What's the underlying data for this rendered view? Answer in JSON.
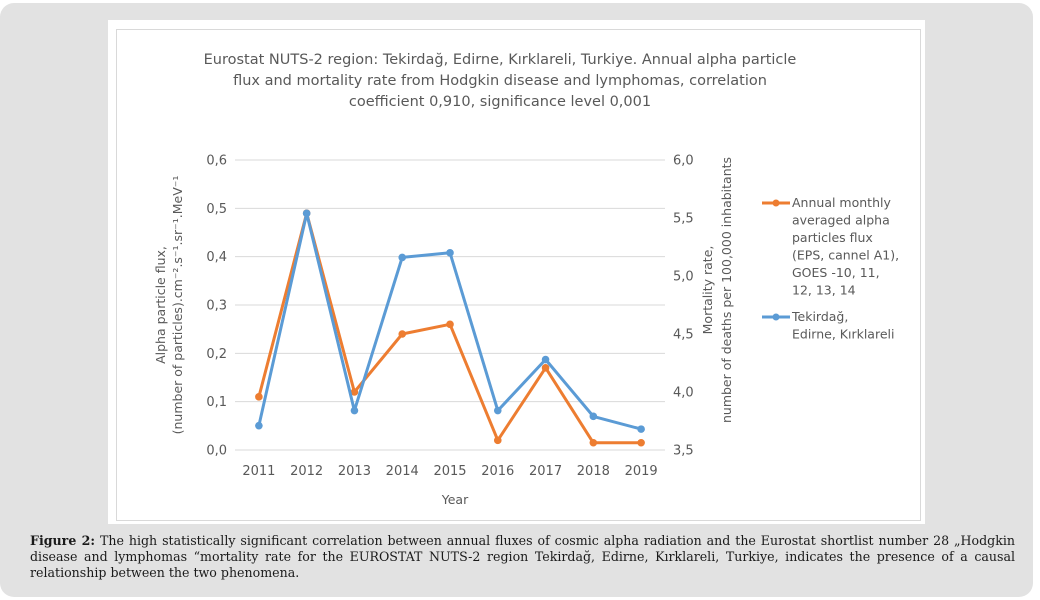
{
  "chart_data": {
    "type": "line",
    "title_lines": [
      "Eurostat NUTS-2 region: Tekirdağ, Edirne, Kırklareli, Turkiye. Annual alpha particle",
      "flux and mortality rate from Hodgkin disease and lymphomas,  correlation",
      "coefficient 0,910, significance level 0,001"
    ],
    "categories": [
      "2011",
      "2012",
      "2013",
      "2014",
      "2015",
      "2016",
      "2017",
      "2018",
      "2019"
    ],
    "xlabel": "Year",
    "y_left": {
      "label_lines": [
        "Alpha particle flux,",
        "(number of particles).cm⁻².s⁻¹.sr⁻¹.MeV⁻¹"
      ],
      "range": [
        0.0,
        0.6
      ],
      "ticks": [
        "0,0",
        "0,1",
        "0,2",
        "0,3",
        "0,4",
        "0,5",
        "0,6"
      ]
    },
    "y_right": {
      "label_lines": [
        "Mortality rate,",
        "number of deaths per 100,000 inhabitants"
      ],
      "range": [
        3.5,
        6.0
      ],
      "ticks": [
        "3,5",
        "4,0",
        "4,5",
        "5,0",
        "5,5",
        "6,0"
      ]
    },
    "grid": true,
    "legend_position": "right",
    "series": [
      {
        "name": "Annual monthly averaged alpha particles flux (EPS, cannel A1), GOES -10, 11, 12, 13, 14",
        "legend_lines": [
          "Annual monthly",
          "averaged alpha",
          "particles flux",
          "(EPS, cannel A1),",
          "GOES -10, 11,",
          "12, 13, 14"
        ],
        "axis": "left",
        "color": "#ed7d31",
        "values": [
          0.11,
          0.49,
          0.12,
          0.24,
          0.26,
          0.02,
          0.17,
          0.015,
          0.015
        ]
      },
      {
        "name": "Tekirdağ, Edirne, Kırklareli",
        "legend_lines": [
          "Tekirdağ,",
          "Edirne, Kırklareli"
        ],
        "axis": "right",
        "color": "#5b9bd5",
        "values": [
          3.71,
          5.54,
          3.84,
          5.16,
          5.2,
          3.84,
          4.28,
          3.79,
          3.68
        ]
      }
    ]
  },
  "caption": {
    "label": "Figure 2:",
    "text": " The high statistically significant correlation between annual fluxes of cosmic alpha radiation and the Eurostat shortlist number 28 „Hodgkin disease and lymphomas “mortality rate for the EUROSTAT NUTS-2 region Tekirdağ, Edirne, Kırklareli, Turkiye, indicates the presence of a causal relationship between the two phenomena."
  }
}
